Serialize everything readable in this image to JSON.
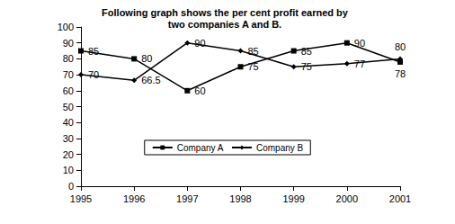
{
  "chart_data": {
    "type": "line",
    "title": "Following graph shows the per cent profit earned by\ntwo companies A and B.",
    "categories": [
      "1995",
      "1996",
      "1997",
      "1998",
      "1999",
      "2000",
      "2001"
    ],
    "series": [
      {
        "name": "Company A",
        "color": "#000000",
        "marker": "square",
        "line_style": "solid",
        "values": [
          85,
          80,
          60,
          75,
          85,
          90,
          78
        ]
      },
      {
        "name": "Company B",
        "color": "#000000",
        "marker": "diamond",
        "line_style": "solid",
        "values": [
          70,
          66.5,
          90,
          85,
          75,
          77,
          80
        ]
      }
    ],
    "ylim": [
      0,
      100
    ],
    "yticks": [
      0,
      10,
      20,
      30,
      40,
      50,
      60,
      70,
      80,
      90,
      100
    ],
    "grid": false,
    "legend": "bottom",
    "data_labels": true
  }
}
